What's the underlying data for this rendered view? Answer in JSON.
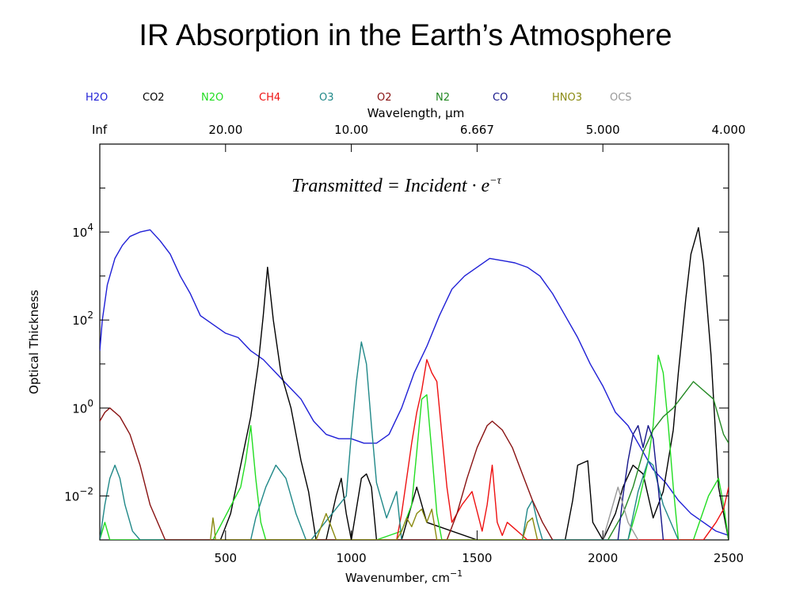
{
  "slide": {
    "title": "IR Absorption in the Earth’s Atmosphere"
  },
  "chart_data": {
    "type": "line",
    "title": "",
    "xlabel": "Wavenumber, cm",
    "xlabel_sup": "−1",
    "ylabel": "Optical Thickness",
    "x2label": "Wavelength, μm",
    "xlim": [
      0,
      2500
    ],
    "ylim_log10": [
      -3,
      6
    ],
    "y_scale": "log",
    "x_ticks": [
      500,
      1000,
      1500,
      2000,
      2500
    ],
    "y_ticks": [
      {
        "base": "10",
        "exp": "4",
        "log10": 4
      },
      {
        "base": "10",
        "exp": "2",
        "log10": 2
      },
      {
        "base": "10",
        "exp": "0",
        "log10": 0
      },
      {
        "base": "10",
        "exp": "−2",
        "log10": -2
      }
    ],
    "top_ticks": [
      {
        "label": "Inf",
        "wavenumber": 0
      },
      {
        "label": "20.00",
        "wavenumber": 500
      },
      {
        "label": "10.00",
        "wavenumber": 1000
      },
      {
        "label": "6.667",
        "wavenumber": 1500
      },
      {
        "label": "5.000",
        "wavenumber": 2000
      },
      {
        "label": "4.000",
        "wavenumber": 2500
      }
    ],
    "annotation": "Transmitted = Incident · e",
    "annotation_sup": "−τ",
    "legend_position": "top",
    "series": [
      {
        "name": "H2O",
        "color": "#1f1fd6",
        "x": [
          0,
          10,
          30,
          60,
          90,
          120,
          160,
          200,
          240,
          280,
          320,
          360,
          400,
          450,
          500,
          550,
          600,
          650,
          700,
          750,
          800,
          850,
          900,
          950,
          1000,
          1050,
          1100,
          1150,
          1200,
          1250,
          1300,
          1350,
          1400,
          1450,
          1500,
          1550,
          1600,
          1650,
          1700,
          1750,
          1800,
          1850,
          1900,
          1950,
          2000,
          2050,
          2100,
          2150,
          2200,
          2250,
          2300,
          2350,
          2400,
          2450,
          2500
        ],
        "y": [
          1.3,
          2.0,
          2.8,
          3.4,
          3.7,
          3.9,
          4.0,
          4.05,
          3.8,
          3.5,
          3.0,
          2.6,
          2.1,
          1.9,
          1.7,
          1.6,
          1.3,
          1.1,
          0.8,
          0.5,
          0.2,
          -0.3,
          -0.6,
          -0.7,
          -0.7,
          -0.8,
          -0.8,
          -0.6,
          0.0,
          0.8,
          1.4,
          2.1,
          2.7,
          3.0,
          3.2,
          3.4,
          3.35,
          3.3,
          3.2,
          3.0,
          2.6,
          2.1,
          1.6,
          1.0,
          0.5,
          -0.1,
          -0.4,
          -0.9,
          -1.4,
          -1.7,
          -2.1,
          -2.4,
          -2.6,
          -2.8,
          -2.9
        ]
      },
      {
        "name": "CO2",
        "color": "#000000",
        "x": [
          480,
          520,
          560,
          600,
          630,
          650,
          667,
          690,
          720,
          760,
          800,
          830,
          860,
          900,
          940,
          960,
          980,
          1000,
          1040,
          1060,
          1080,
          1100,
          1200,
          1240,
          1260,
          1300,
          1500,
          1560,
          1700,
          1850,
          1880,
          1900,
          1940,
          1960,
          2000,
          2050,
          2080,
          2120,
          2160,
          2200,
          2240,
          2280,
          2300,
          2330,
          2350,
          2380,
          2400,
          2430,
          2460,
          2500
        ],
        "y": [
          -3,
          -2.4,
          -1.3,
          -0.2,
          1.0,
          2.1,
          3.2,
          2.0,
          0.8,
          0.0,
          -1.2,
          -1.9,
          -3,
          -3,
          -2.0,
          -1.6,
          -2.4,
          -3,
          -1.6,
          -1.5,
          -1.8,
          -3,
          -3,
          -2.2,
          -1.8,
          -2.6,
          -3,
          -3,
          -3,
          -3,
          -2.1,
          -1.3,
          -1.2,
          -2.6,
          -3,
          -2.4,
          -1.8,
          -1.3,
          -1.5,
          -2.5,
          -1.9,
          -0.5,
          0.8,
          2.5,
          3.5,
          4.1,
          3.3,
          1.2,
          -1.8,
          -3
        ]
      },
      {
        "name": "N2O",
        "color": "#22dd22",
        "x": [
          0,
          20,
          40,
          450,
          560,
          580,
          600,
          620,
          640,
          660,
          700,
          740,
          1100,
          1200,
          1240,
          1260,
          1280,
          1300,
          1320,
          1340,
          1360,
          1500,
          1900,
          2100,
          2140,
          2180,
          2200,
          2220,
          2240,
          2260,
          2280,
          2300,
          2360,
          2420,
          2460,
          2480,
          2500
        ],
        "y": [
          -3,
          -2.6,
          -3,
          -3,
          -1.8,
          -1.2,
          -0.4,
          -1.6,
          -2.6,
          -3,
          -3,
          -3,
          -3,
          -2.8,
          -2.2,
          -1.0,
          0.2,
          0.3,
          -1.0,
          -2.4,
          -3,
          -3,
          -3,
          -3,
          -2.2,
          -1.2,
          -0.4,
          1.2,
          0.8,
          -0.4,
          -1.8,
          -3,
          -3,
          -2.0,
          -1.6,
          -2.2,
          -3
        ]
      },
      {
        "name": "CH4",
        "color": "#ee1111",
        "x": [
          1180,
          1200,
          1220,
          1240,
          1260,
          1280,
          1300,
          1320,
          1340,
          1360,
          1380,
          1400,
          1440,
          1480,
          1520,
          1540,
          1560,
          1580,
          1600,
          1620,
          1640,
          1680,
          1700,
          2400,
          2450,
          2480,
          2500
        ],
        "y": [
          -3,
          -2.4,
          -1.6,
          -0.8,
          -0.1,
          0.4,
          1.1,
          0.8,
          0.6,
          -0.6,
          -1.8,
          -2.6,
          -2.2,
          -1.9,
          -2.8,
          -2.2,
          -1.3,
          -2.6,
          -2.9,
          -2.6,
          -2.7,
          -2.9,
          -3,
          -3,
          -2.6,
          -2.3,
          -1.8
        ]
      },
      {
        "name": "O3",
        "color": "#208888",
        "x": [
          0,
          20,
          40,
          60,
          80,
          100,
          130,
          160,
          600,
          620,
          660,
          700,
          740,
          780,
          820,
          840,
          980,
          1000,
          1020,
          1040,
          1060,
          1080,
          1100,
          1140,
          1180,
          1200,
          1680,
          1700,
          1720,
          1740,
          1760,
          2100,
          2140,
          2180,
          2200,
          2240,
          2300
        ],
        "y": [
          -3,
          -2.2,
          -1.6,
          -1.3,
          -1.6,
          -2.2,
          -2.8,
          -3,
          -3,
          -2.5,
          -1.8,
          -1.3,
          -1.6,
          -2.4,
          -3,
          -3,
          -2.0,
          -0.6,
          0.6,
          1.5,
          1.0,
          -0.4,
          -1.7,
          -2.5,
          -1.9,
          -3,
          -3,
          -2.3,
          -2.1,
          -2.6,
          -3,
          -3,
          -1.9,
          -1.2,
          -1.3,
          -2.2,
          -3
        ]
      },
      {
        "name": "O2",
        "color": "#881111",
        "x": [
          0,
          20,
          40,
          80,
          120,
          160,
          200,
          260,
          1380,
          1420,
          1460,
          1500,
          1540,
          1560,
          1600,
          1640,
          1680,
          1720,
          1760,
          1800
        ],
        "y": [
          -0.3,
          -0.1,
          0.0,
          -0.2,
          -0.6,
          -1.3,
          -2.2,
          -3,
          -3,
          -2.4,
          -1.6,
          -0.9,
          -0.4,
          -0.3,
          -0.5,
          -0.9,
          -1.5,
          -2.1,
          -2.6,
          -3
        ]
      },
      {
        "name": "N2",
        "color": "#228822",
        "x": [
          2020,
          2080,
          2120,
          2160,
          2200,
          2240,
          2280,
          2320,
          2360,
          2400,
          2440,
          2480,
          2500
        ],
        "y": [
          -3,
          -2.4,
          -1.8,
          -1.0,
          -0.5,
          -0.2,
          0.0,
          0.3,
          0.6,
          0.4,
          0.2,
          -0.6,
          -0.8
        ]
      },
      {
        "name": "CO",
        "color": "#16168a",
        "x": [
          2060,
          2080,
          2100,
          2120,
          2140,
          2160,
          2180,
          2200,
          2220,
          2240
        ],
        "y": [
          -3,
          -2.0,
          -1.2,
          -0.6,
          -0.4,
          -0.9,
          -0.4,
          -0.7,
          -1.8,
          -3
        ]
      },
      {
        "name": "HNO3",
        "color": "#8a8a10",
        "x": [
          440,
          450,
          455,
          460,
          860,
          880,
          900,
          920,
          940,
          1180,
          1200,
          1220,
          1240,
          1260,
          1280,
          1300,
          1320,
          1340,
          1680,
          1700,
          1720,
          1740
        ],
        "y": [
          -3,
          -2.5,
          -2.7,
          -3,
          -3,
          -2.7,
          -2.4,
          -2.7,
          -3,
          -3,
          -2.8,
          -2.5,
          -2.7,
          -2.4,
          -2.3,
          -2.6,
          -2.3,
          -3,
          -3,
          -2.6,
          -2.5,
          -3
        ]
      },
      {
        "name": "OCS",
        "color": "#999999",
        "x": [
          2000,
          2040,
          2060,
          2080,
          2100,
          2140
        ],
        "y": [
          -3,
          -2.2,
          -1.8,
          -2.2,
          -2.6,
          -3
        ]
      }
    ]
  }
}
